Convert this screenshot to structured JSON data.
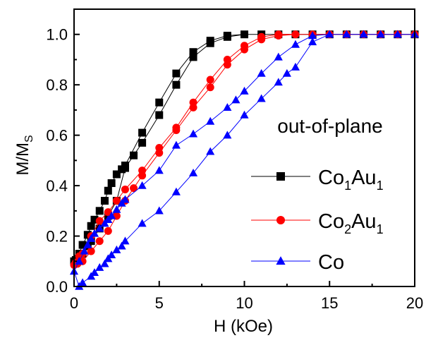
{
  "chart_data": {
    "type": "line",
    "xlabel": "H (kOe)",
    "ylabel_main": "M/M",
    "ylabel_sub": "S",
    "annotation": "out-of-plane",
    "xlim": [
      0,
      20
    ],
    "ylim": [
      0,
      1.1
    ],
    "xticks": [
      "0",
      "5",
      "10",
      "15",
      "20"
    ],
    "yticks": [
      "0.0",
      "0.2",
      "0.4",
      "0.6",
      "0.8",
      "1.0"
    ],
    "grid": false,
    "legend_position": "right",
    "series": [
      {
        "name": "Co1Au1",
        "label_parts": [
          "Co",
          "1",
          "Au",
          "1"
        ],
        "color": "#000000",
        "marker": "square",
        "loop": [
          [
            20,
            1.0
          ],
          [
            19,
            1.0
          ],
          [
            18,
            1.0
          ],
          [
            17,
            1.0
          ],
          [
            16,
            1.0
          ],
          [
            15,
            1.0
          ],
          [
            14,
            1.0
          ],
          [
            13,
            1.0
          ],
          [
            12,
            1.0
          ],
          [
            11,
            1.0
          ],
          [
            10,
            1.0
          ],
          [
            9,
            0.995
          ],
          [
            8,
            0.975
          ],
          [
            7,
            0.93
          ],
          [
            6,
            0.845
          ],
          [
            5,
            0.73
          ],
          [
            4,
            0.61
          ],
          [
            3,
            0.48
          ],
          [
            2.8,
            0.465
          ],
          [
            2.5,
            0.445
          ],
          [
            2.2,
            0.41
          ],
          [
            2,
            0.38
          ],
          [
            1.8,
            0.34
          ],
          [
            1.5,
            0.3
          ],
          [
            1.2,
            0.265
          ],
          [
            1,
            0.24
          ],
          [
            0.8,
            0.205
          ],
          [
            0.5,
            0.165
          ],
          [
            0.3,
            0.13
          ],
          [
            0.1,
            0.105
          ],
          [
            0,
            0.1
          ],
          [
            0.2,
            0.11
          ],
          [
            0.5,
            0.13
          ],
          [
            0.8,
            0.16
          ],
          [
            1,
            0.18
          ],
          [
            1.5,
            0.23
          ],
          [
            2,
            0.28
          ],
          [
            2.5,
            0.34
          ],
          [
            3,
            0.47
          ],
          [
            3.5,
            0.52
          ],
          [
            4,
            0.57
          ],
          [
            5,
            0.68
          ],
          [
            6,
            0.8
          ],
          [
            7,
            0.91
          ],
          [
            8,
            0.965
          ],
          [
            9,
            0.99
          ],
          [
            10,
            1.0
          ],
          [
            11,
            1.0
          ],
          [
            12,
            1.0
          ],
          [
            13,
            1.0
          ],
          [
            14,
            1.0
          ],
          [
            15,
            1.0
          ],
          [
            16,
            1.0
          ],
          [
            17,
            1.0
          ],
          [
            18,
            1.0
          ],
          [
            19,
            1.0
          ],
          [
            20,
            1.0
          ]
        ]
      },
      {
        "name": "Co2Au1",
        "label_parts": [
          "Co",
          "2",
          "Au",
          "1"
        ],
        "color": "#ff0000",
        "marker": "circle",
        "loop": [
          [
            20,
            1.0
          ],
          [
            19,
            1.0
          ],
          [
            18,
            1.0
          ],
          [
            17,
            1.0
          ],
          [
            16,
            1.0
          ],
          [
            15,
            1.0
          ],
          [
            14,
            1.0
          ],
          [
            13,
            1.0
          ],
          [
            12,
            1.0
          ],
          [
            11,
            0.99
          ],
          [
            10,
            0.955
          ],
          [
            9,
            0.9
          ],
          [
            8,
            0.82
          ],
          [
            7,
            0.73
          ],
          [
            6,
            0.63
          ],
          [
            5,
            0.55
          ],
          [
            4,
            0.46
          ],
          [
            3,
            0.385
          ],
          [
            2.5,
            0.34
          ],
          [
            2,
            0.295
          ],
          [
            1.5,
            0.26
          ],
          [
            1,
            0.2
          ],
          [
            0.5,
            0.13
          ],
          [
            0.3,
            0.12
          ],
          [
            0.1,
            0.095
          ],
          [
            0,
            0.085
          ],
          [
            0.2,
            0.09
          ],
          [
            0.5,
            0.1
          ],
          [
            1,
            0.14
          ],
          [
            1.5,
            0.18
          ],
          [
            2,
            0.22
          ],
          [
            2.5,
            0.28
          ],
          [
            3,
            0.34
          ],
          [
            3.5,
            0.39
          ],
          [
            4,
            0.44
          ],
          [
            5,
            0.53
          ],
          [
            6,
            0.62
          ],
          [
            7,
            0.71
          ],
          [
            8,
            0.79
          ],
          [
            9,
            0.88
          ],
          [
            10,
            0.94
          ],
          [
            11,
            0.98
          ],
          [
            12,
            0.995
          ],
          [
            13,
            1.0
          ],
          [
            14,
            1.0
          ],
          [
            15,
            1.0
          ],
          [
            16,
            1.0
          ],
          [
            17,
            1.0
          ],
          [
            18,
            1.0
          ],
          [
            19,
            1.0
          ],
          [
            20,
            1.0
          ]
        ]
      },
      {
        "name": "Co",
        "label_parts": [
          "Co"
        ],
        "color": "#0000ff",
        "marker": "triangle",
        "loop": [
          [
            20,
            1.0
          ],
          [
            19,
            1.0
          ],
          [
            18,
            1.0
          ],
          [
            17,
            1.0
          ],
          [
            16,
            1.0
          ],
          [
            15,
            1.0
          ],
          [
            14,
            0.995
          ],
          [
            13,
            0.96
          ],
          [
            12,
            0.91
          ],
          [
            11,
            0.845
          ],
          [
            10,
            0.775
          ],
          [
            9.5,
            0.74
          ],
          [
            9,
            0.71
          ],
          [
            8,
            0.655
          ],
          [
            7,
            0.605
          ],
          [
            6,
            0.56
          ],
          [
            5,
            0.46
          ],
          [
            4,
            0.4
          ],
          [
            3,
            0.345
          ],
          [
            2.8,
            0.33
          ],
          [
            2.5,
            0.305
          ],
          [
            2.2,
            0.28
          ],
          [
            2,
            0.265
          ],
          [
            1.8,
            0.25
          ],
          [
            1.5,
            0.23
          ],
          [
            1.2,
            0.21
          ],
          [
            1,
            0.19
          ],
          [
            0.8,
            0.165
          ],
          [
            0.6,
            0.14
          ],
          [
            0.3,
            0.1
          ],
          [
            0,
            0.06
          ],
          [
            0.3,
            0.0
          ],
          [
            0.5,
            0.015
          ],
          [
            1,
            0.04
          ],
          [
            1.2,
            0.055
          ],
          [
            1.5,
            0.075
          ],
          [
            1.8,
            0.09
          ],
          [
            2,
            0.11
          ],
          [
            2.2,
            0.125
          ],
          [
            2.5,
            0.145
          ],
          [
            2.8,
            0.16
          ],
          [
            3,
            0.18
          ],
          [
            4,
            0.25
          ],
          [
            5,
            0.3
          ],
          [
            6,
            0.375
          ],
          [
            7,
            0.45
          ],
          [
            8,
            0.535
          ],
          [
            9,
            0.6
          ],
          [
            10,
            0.68
          ],
          [
            11,
            0.745
          ],
          [
            12,
            0.81
          ],
          [
            12.5,
            0.845
          ],
          [
            13,
            0.87
          ],
          [
            14,
            0.97
          ],
          [
            15,
            1.0
          ],
          [
            16,
            1.0
          ],
          [
            17,
            1.0
          ],
          [
            18,
            1.0
          ],
          [
            19,
            1.0
          ],
          [
            20,
            1.0
          ]
        ]
      }
    ]
  }
}
